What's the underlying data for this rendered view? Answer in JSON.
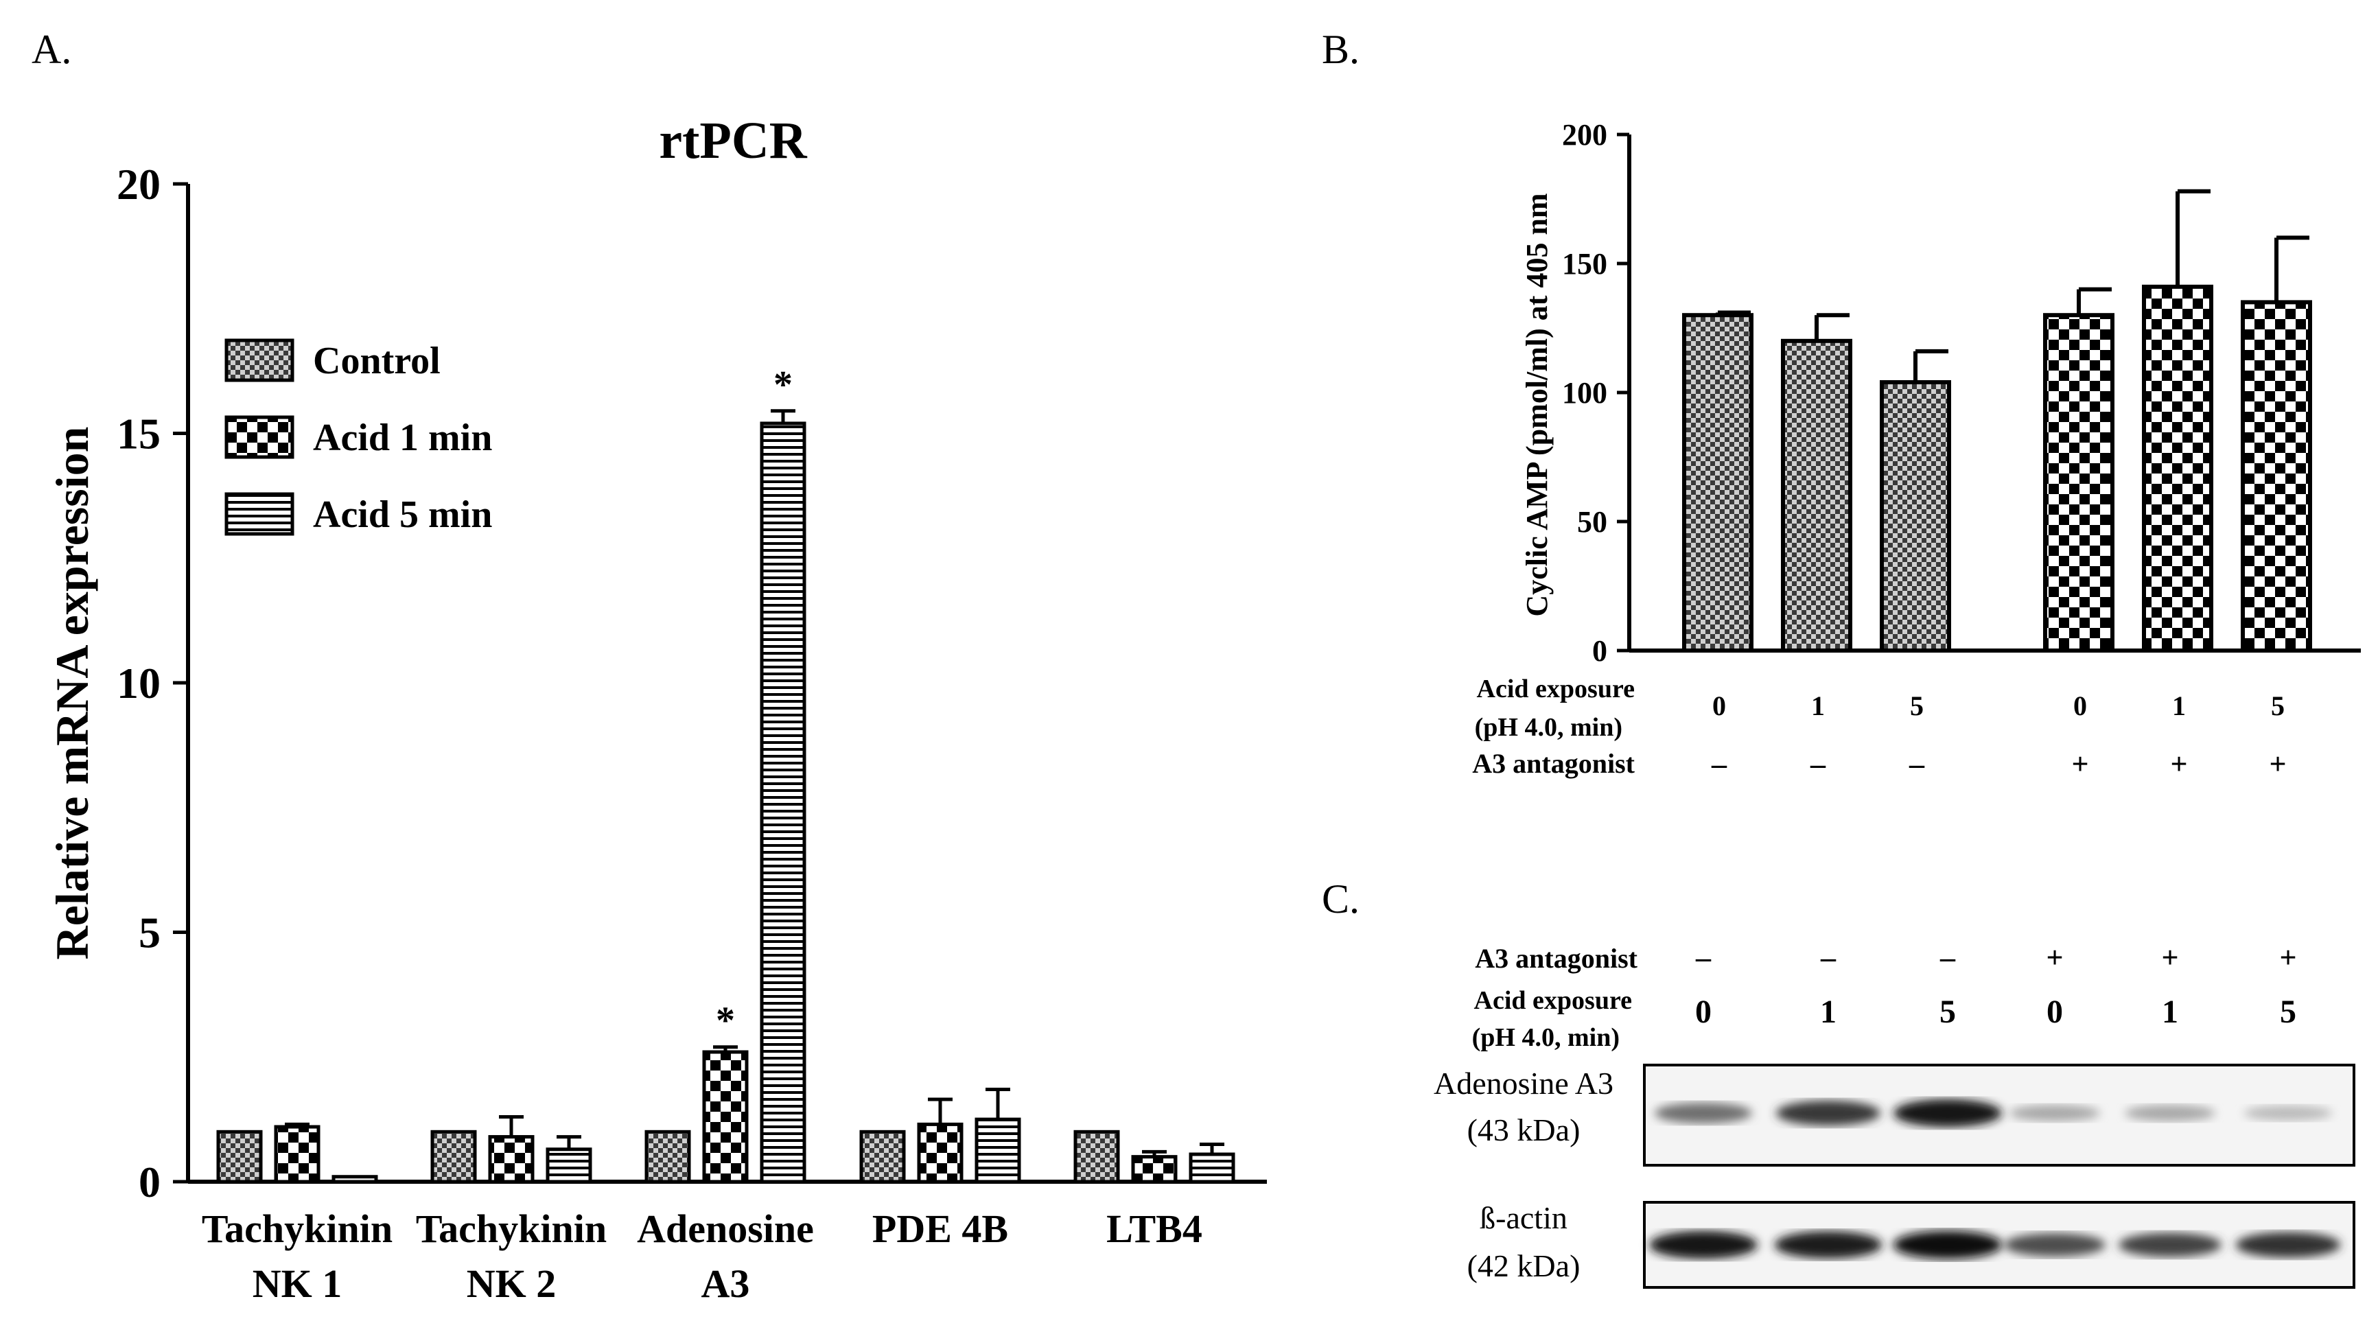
{
  "colors": {
    "ink": "#000000",
    "background": "#ffffff",
    "light_fill": "#cfcfcf",
    "band": "#1a1a1a"
  },
  "panelA": {
    "label": "A.",
    "chart_data": {
      "type": "bar",
      "title": "rtPCR",
      "ylabel": "Relative mRNA expression",
      "xlabel": "",
      "ylim": [
        0,
        20
      ],
      "yticks": [
        "0",
        "5",
        "10",
        "15",
        "20"
      ],
      "categories": [
        {
          "line1": "Tachykinin",
          "line2": "NK 1"
        },
        {
          "line1": "Tachykinin",
          "line2": "NK 2"
        },
        {
          "line1": "Adenosine",
          "line2": "A3"
        },
        {
          "line1": "PDE 4B",
          "line2": ""
        },
        {
          "line1": "LTB4",
          "line2": ""
        }
      ],
      "legend_position": "top-left",
      "series": [
        {
          "name": "Control",
          "pattern": "fine-check",
          "values": [
            1.0,
            1.0,
            1.0,
            1.0,
            1.0
          ],
          "errors": [
            0,
            0,
            0,
            0,
            0
          ]
        },
        {
          "name": "Acid 1 min",
          "pattern": "coarse-check",
          "values": [
            1.1,
            0.9,
            2.6,
            1.15,
            0.5
          ],
          "errors": [
            0.05,
            0.4,
            0.1,
            0.5,
            0.1
          ]
        },
        {
          "name": "Acid 5 min",
          "pattern": "horizontal-stripes",
          "values": [
            0.1,
            0.65,
            15.2,
            1.25,
            0.55
          ],
          "errors": [
            0.0,
            0.25,
            0.25,
            0.6,
            0.2
          ]
        }
      ],
      "annotations": [
        {
          "category": 2,
          "series": 1,
          "text": "*"
        },
        {
          "category": 2,
          "series": 2,
          "text": "*"
        }
      ]
    }
  },
  "panelB": {
    "label": "B.",
    "chart_data": {
      "type": "bar",
      "title": "",
      "ylabel": "Cyclic AMP (pmol/ml) at 405 nm",
      "xlabel": "",
      "ylim": [
        0,
        200
      ],
      "yticks": [
        "0",
        "50",
        "100",
        "150",
        "200"
      ],
      "series": [
        {
          "pattern": "fine-check",
          "values": [
            130,
            120,
            104
          ],
          "errors": [
            1,
            10,
            12
          ]
        },
        {
          "pattern": "coarse-check",
          "values": [
            130,
            141,
            135
          ],
          "errors": [
            10,
            37,
            25
          ]
        }
      ],
      "row_labels": {
        "acid_line1": "Acid exposure",
        "acid_line2": "(pH 4.0, min)",
        "antagonist": "A3 antagonist"
      },
      "acid_values": [
        "0",
        "1",
        "5",
        "0",
        "1",
        "5"
      ],
      "antagonist_values": [
        "–",
        "–",
        "–",
        "+",
        "+",
        "+"
      ]
    }
  },
  "panelC": {
    "label": "C.",
    "row_labels": {
      "antagonist": "A3 antagonist",
      "acid_line1": "Acid exposure",
      "acid_line2": "(pH 4.0, min)"
    },
    "antagonist_values": [
      "–",
      "–",
      "–",
      "+",
      "+",
      "+"
    ],
    "acid_values": [
      "0",
      "1",
      "5",
      "0",
      "1",
      "5"
    ],
    "blots": [
      {
        "name_line1": "Adenosine A3",
        "name_line2": "(43 kDa)",
        "intensities": [
          0.55,
          0.8,
          0.95,
          0.3,
          0.3,
          0.22
        ]
      },
      {
        "name_line1": "ß-actin",
        "name_line2": "(42 kDa)",
        "intensities": [
          0.95,
          0.92,
          0.98,
          0.7,
          0.75,
          0.82
        ]
      }
    ]
  }
}
